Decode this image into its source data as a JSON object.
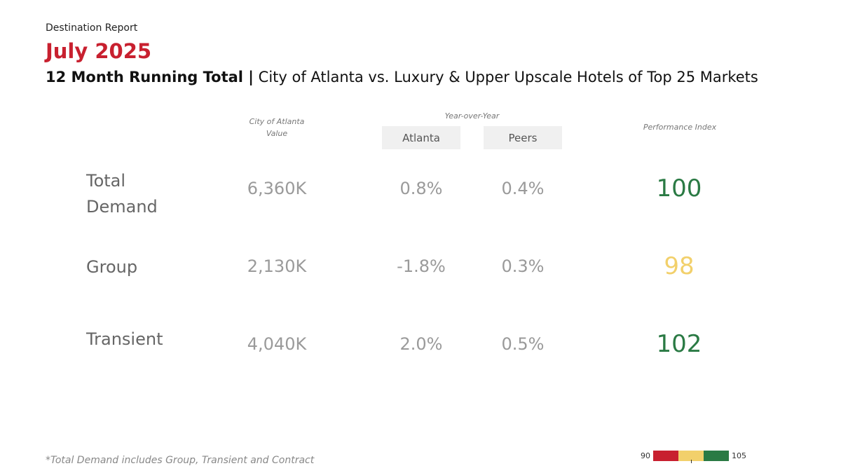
{
  "header": {
    "report_label": "Destination Report",
    "month": "July 2025",
    "subtitle_bold": "12 Month Running Total |",
    "subtitle_rest": " City of Atlanta vs. Luxury & Upper Upscale Hotels of Top 25 Markets"
  },
  "columns": {
    "value_line1": "City of Atlanta",
    "value_line2": "Value",
    "yoy": "Year-over-Year",
    "atlanta": "Atlanta",
    "peers": "Peers",
    "performance_index": "Performance Index"
  },
  "colors": {
    "title_red": "#c8202f",
    "index_green": "#2a7a44",
    "index_yellow": "#f2d06b",
    "index_red": "#c8202f"
  },
  "chart_data": {
    "type": "table",
    "rows": [
      {
        "label": "Total Demand",
        "value": "6,360K",
        "yoy_atlanta": "0.8%",
        "yoy_peers": "0.4%",
        "index": "100",
        "index_color": "green"
      },
      {
        "label": "Group",
        "value": "2,130K",
        "yoy_atlanta": "-1.8%",
        "yoy_peers": "0.3%",
        "index": "98",
        "index_color": "yellow"
      },
      {
        "label": "Transient",
        "value": "4,040K",
        "yoy_atlanta": "2.0%",
        "yoy_peers": "0.5%",
        "index": "102",
        "index_color": "green"
      }
    ],
    "index_scale": {
      "min": "90",
      "max": "105",
      "colors": [
        "red",
        "yellow",
        "green"
      ]
    }
  },
  "footnote": "*Total Demand includes Group, Transient and Contract"
}
